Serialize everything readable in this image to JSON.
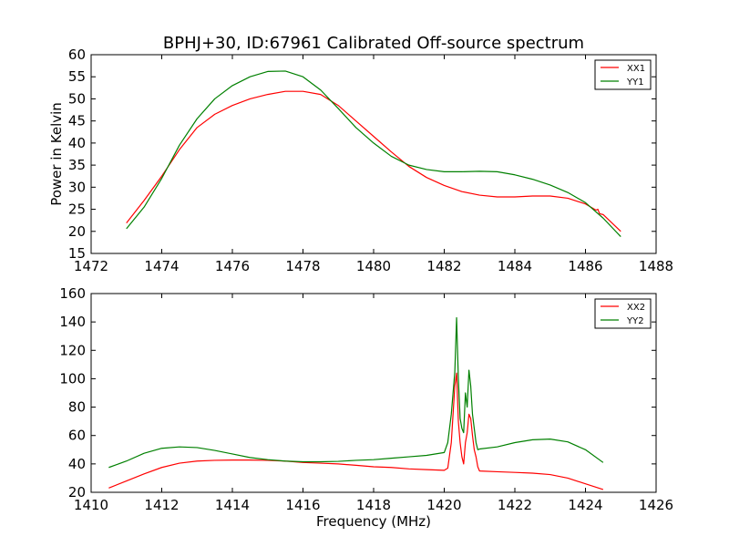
{
  "colors": {
    "xx": "#ff0000",
    "yy": "#008000",
    "axis": "#000000",
    "background": "#ffffff"
  },
  "chart_data": [
    {
      "type": "line",
      "title": "BPHJ+30, ID:67961 Calibrated Off-source spectrum",
      "xlabel": "",
      "ylabel": "Power in Kelvin",
      "xlim": [
        1472,
        1488
      ],
      "ylim": [
        15,
        60
      ],
      "xticks": [
        1472,
        1474,
        1476,
        1478,
        1480,
        1482,
        1484,
        1486,
        1488
      ],
      "yticks": [
        15,
        20,
        25,
        30,
        35,
        40,
        45,
        50,
        55,
        60
      ],
      "grid": false,
      "legend": "top-right",
      "series": [
        {
          "name": "XX1",
          "color": "#ff0000",
          "x": [
            1473.0,
            1473.5,
            1474.0,
            1474.5,
            1475.0,
            1475.5,
            1476.0,
            1476.5,
            1477.0,
            1477.5,
            1478.0,
            1478.5,
            1479.0,
            1479.5,
            1480.0,
            1480.5,
            1481.0,
            1481.5,
            1482.0,
            1482.5,
            1483.0,
            1483.5,
            1484.0,
            1484.5,
            1485.0,
            1485.5,
            1486.0,
            1486.3,
            1486.35,
            1486.4,
            1486.5,
            1487.0
          ],
          "y": [
            21.9,
            27.0,
            32.5,
            38.5,
            43.5,
            46.5,
            48.5,
            50.0,
            51.0,
            51.7,
            51.7,
            51.0,
            48.5,
            45.0,
            41.5,
            38.0,
            34.7,
            32.2,
            30.4,
            29.0,
            28.2,
            27.8,
            27.8,
            28.0,
            28.0,
            27.5,
            26.2,
            24.8,
            25.0,
            24.0,
            23.8,
            20.0
          ]
        },
        {
          "name": "YY1",
          "color": "#008000",
          "x": [
            1473.0,
            1473.5,
            1474.0,
            1474.5,
            1475.0,
            1475.5,
            1476.0,
            1476.5,
            1477.0,
            1477.5,
            1478.0,
            1478.5,
            1479.0,
            1479.5,
            1480.0,
            1480.5,
            1481.0,
            1481.5,
            1482.0,
            1482.5,
            1483.0,
            1483.5,
            1484.0,
            1484.5,
            1485.0,
            1485.5,
            1486.0,
            1486.5,
            1487.0
          ],
          "y": [
            20.6,
            25.5,
            32.0,
            39.5,
            45.5,
            50.0,
            53.0,
            55.0,
            56.2,
            56.3,
            55.0,
            52.0,
            47.8,
            43.5,
            40.0,
            37.0,
            35.0,
            34.0,
            33.5,
            33.5,
            33.6,
            33.5,
            32.8,
            31.8,
            30.5,
            28.8,
            26.5,
            23.0,
            18.8
          ]
        }
      ]
    },
    {
      "type": "line",
      "title": "",
      "xlabel": "Frequency (MHz)",
      "ylabel": "",
      "xlim": [
        1410,
        1426
      ],
      "ylim": [
        20,
        160
      ],
      "xticks": [
        1410,
        1412,
        1414,
        1416,
        1418,
        1420,
        1422,
        1424,
        1426
      ],
      "yticks": [
        20,
        40,
        60,
        80,
        100,
        120,
        140,
        160
      ],
      "grid": false,
      "legend": "top-right",
      "series": [
        {
          "name": "XX2",
          "color": "#ff0000",
          "x": [
            1410.5,
            1411.0,
            1411.5,
            1412.0,
            1412.5,
            1413.0,
            1413.5,
            1414.0,
            1414.5,
            1415.0,
            1415.5,
            1416.0,
            1416.5,
            1417.0,
            1417.5,
            1418.0,
            1418.5,
            1419.0,
            1419.5,
            1420.0,
            1420.1,
            1420.2,
            1420.3,
            1420.35,
            1420.4,
            1420.45,
            1420.5,
            1420.55,
            1420.6,
            1420.65,
            1420.7,
            1420.75,
            1420.8,
            1420.85,
            1420.9,
            1420.95,
            1421.0,
            1421.5,
            1422.0,
            1422.5,
            1423.0,
            1423.5,
            1424.0,
            1424.5
          ],
          "y": [
            23.0,
            28.0,
            33.0,
            37.5,
            40.5,
            42.0,
            42.5,
            42.7,
            42.7,
            42.5,
            42.0,
            41.0,
            40.5,
            40.0,
            39.0,
            38.0,
            37.5,
            36.5,
            36.0,
            35.5,
            37.0,
            55.0,
            95.0,
            104.0,
            70.0,
            55.0,
            45.0,
            40.0,
            55.0,
            62.0,
            75.0,
            72.0,
            60.0,
            50.0,
            45.0,
            38.0,
            35.0,
            34.5,
            34.0,
            33.5,
            32.5,
            30.0,
            26.0,
            22.0
          ]
        },
        {
          "name": "YY2",
          "color": "#008000",
          "x": [
            1410.5,
            1411.0,
            1411.5,
            1412.0,
            1412.5,
            1413.0,
            1413.5,
            1414.0,
            1414.5,
            1415.0,
            1415.5,
            1416.0,
            1416.5,
            1417.0,
            1417.5,
            1418.0,
            1418.5,
            1419.0,
            1419.5,
            1420.0,
            1420.1,
            1420.2,
            1420.3,
            1420.35,
            1420.4,
            1420.45,
            1420.5,
            1420.55,
            1420.6,
            1420.65,
            1420.7,
            1420.75,
            1420.8,
            1420.85,
            1420.9,
            1420.95,
            1421.0,
            1421.5,
            1422.0,
            1422.5,
            1423.0,
            1423.5,
            1424.0,
            1424.5
          ],
          "y": [
            37.5,
            42.0,
            47.5,
            51.0,
            52.0,
            51.5,
            49.5,
            47.0,
            44.5,
            43.0,
            42.0,
            41.5,
            41.5,
            41.8,
            42.5,
            43.0,
            44.0,
            45.0,
            46.0,
            48.0,
            55.0,
            75.0,
            105.0,
            143.0,
            100.0,
            72.0,
            65.0,
            62.0,
            90.0,
            80.0,
            106.0,
            95.0,
            75.0,
            65.0,
            55.0,
            50.0,
            50.5,
            52.0,
            55.0,
            57.0,
            57.5,
            55.5,
            50.0,
            41.0
          ]
        }
      ]
    }
  ]
}
